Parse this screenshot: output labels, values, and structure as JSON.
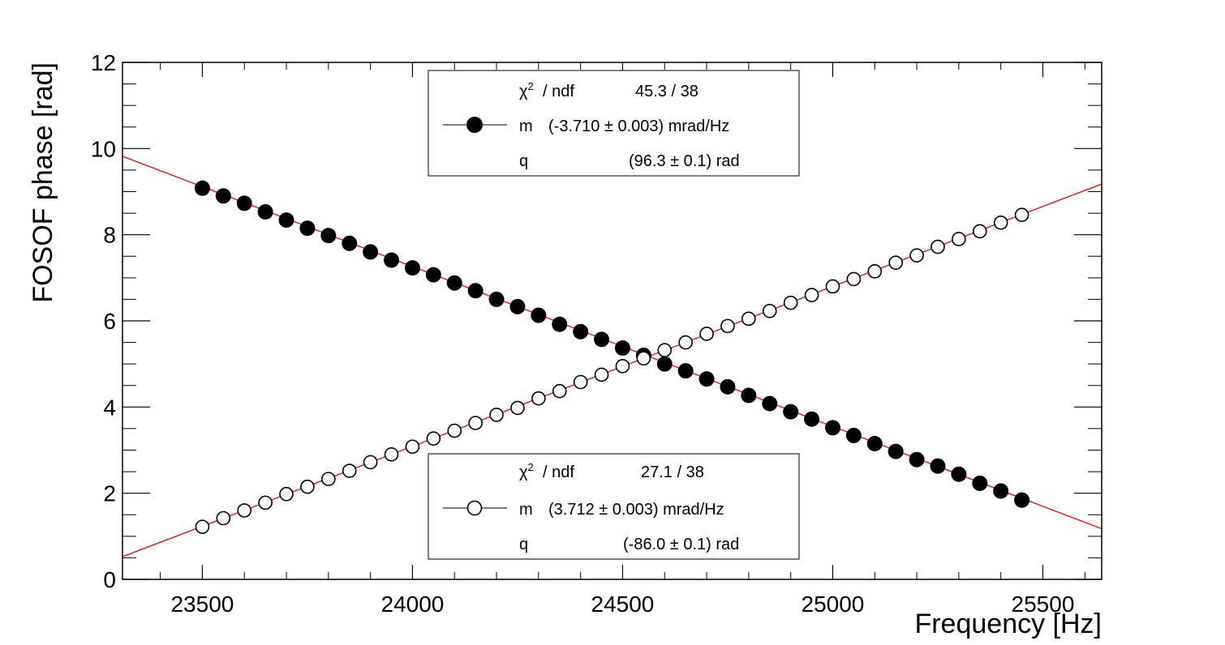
{
  "chart_data": {
    "type": "scatter",
    "xlabel": "Frequency [Hz]",
    "ylabel": "FOSOF phase [rad]",
    "xlim": [
      23310,
      25640
    ],
    "ylim": [
      0,
      12
    ],
    "x_ticks": [
      23500,
      24000,
      24500,
      25000,
      25500
    ],
    "y_ticks": [
      0,
      2,
      4,
      6,
      8,
      10,
      12
    ],
    "x_tick_labels": [
      "23500",
      "24000",
      "24500",
      "25000",
      "25500"
    ],
    "y_tick_labels": [
      "0",
      "2",
      "4",
      "6",
      "8",
      "10",
      "12"
    ],
    "grid": false,
    "fit_color": "#ff0000",
    "series": [
      {
        "name": "filled",
        "marker": "filled-circle",
        "x": [
          23500,
          23550,
          23600,
          23650,
          23700,
          23750,
          23800,
          23850,
          23900,
          23950,
          24000,
          24050,
          24100,
          24150,
          24200,
          24250,
          24300,
          24350,
          24400,
          24450,
          24500,
          24550,
          24600,
          24650,
          24700,
          24750,
          24800,
          24850,
          24900,
          24950,
          25000,
          25050,
          25100,
          25150,
          25200,
          25250,
          25300,
          25350,
          25400,
          25450
        ],
        "y": [
          9.08,
          8.9,
          8.73,
          8.53,
          8.34,
          8.15,
          7.98,
          7.8,
          7.6,
          7.41,
          7.23,
          7.07,
          6.88,
          6.7,
          6.5,
          6.33,
          6.13,
          5.92,
          5.75,
          5.57,
          5.37,
          5.2,
          5.0,
          4.84,
          4.65,
          4.47,
          4.27,
          4.08,
          3.89,
          3.72,
          3.52,
          3.34,
          3.15,
          2.97,
          2.78,
          2.63,
          2.44,
          2.23,
          2.05,
          1.84
        ],
        "fit": {
          "m_per_hz": -0.00371,
          "q": 96.3,
          "x_range": [
            23310,
            25640
          ]
        },
        "legend": {
          "chi2_label": "/ ndf",
          "chi2_value": "45.3 / 38",
          "m_label": "m",
          "m_value": "(-3.710 ± 0.003) mrad/Hz",
          "q_label": "q",
          "q_value": "(96.3 ± 0.1) rad"
        }
      },
      {
        "name": "open",
        "marker": "open-circle",
        "x": [
          23500,
          23550,
          23600,
          23650,
          23700,
          23750,
          23800,
          23850,
          23900,
          23950,
          24000,
          24050,
          24100,
          24150,
          24200,
          24250,
          24300,
          24350,
          24400,
          24450,
          24500,
          24550,
          24600,
          24650,
          24700,
          24750,
          24800,
          24850,
          24900,
          24950,
          25000,
          25050,
          25100,
          25150,
          25200,
          25250,
          25300,
          25350,
          25400,
          25450
        ],
        "y": [
          1.22,
          1.42,
          1.6,
          1.78,
          1.98,
          2.15,
          2.33,
          2.52,
          2.72,
          2.9,
          3.08,
          3.27,
          3.45,
          3.63,
          3.82,
          3.98,
          4.2,
          4.37,
          4.58,
          4.75,
          4.95,
          5.13,
          5.32,
          5.5,
          5.7,
          5.88,
          6.05,
          6.23,
          6.42,
          6.6,
          6.8,
          6.97,
          7.15,
          7.35,
          7.52,
          7.72,
          7.9,
          8.08,
          8.28,
          8.46
        ],
        "fit": {
          "m_per_hz": 0.003712,
          "q": -86.0,
          "x_range": [
            23310,
            25640
          ]
        },
        "legend": {
          "chi2_label": "/ ndf",
          "chi2_value": "27.1 / 38",
          "m_label": "m",
          "m_value": "(3.712 ± 0.003) mrad/Hz",
          "q_label": "q",
          "q_value": "(-86.0 ± 0.1) rad"
        }
      }
    ]
  }
}
